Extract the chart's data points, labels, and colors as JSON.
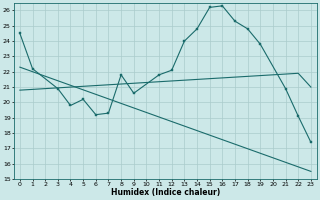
{
  "xlabel": "Humidex (Indice chaleur)",
  "background_color": "#cce8e8",
  "grid_color": "#aacccc",
  "line_color": "#1a6b6b",
  "xlim": [
    -0.5,
    23.5
  ],
  "ylim": [
    15,
    26.5
  ],
  "yticks": [
    15,
    16,
    17,
    18,
    19,
    20,
    21,
    22,
    23,
    24,
    25,
    26
  ],
  "xticks": [
    0,
    1,
    2,
    3,
    4,
    5,
    6,
    7,
    8,
    9,
    10,
    11,
    12,
    13,
    14,
    15,
    16,
    17,
    18,
    19,
    20,
    21,
    22,
    23
  ],
  "line1_x": [
    0,
    1,
    3,
    4,
    5,
    6,
    7,
    8,
    9,
    11,
    12,
    13,
    14,
    15,
    16,
    17,
    18,
    19,
    21,
    22,
    23
  ],
  "line1_y": [
    24.5,
    22.2,
    20.9,
    19.8,
    20.2,
    19.2,
    19.3,
    21.8,
    20.6,
    21.8,
    22.1,
    24.0,
    24.8,
    26.2,
    26.3,
    25.3,
    24.8,
    23.8,
    20.9,
    19.1,
    17.4
  ],
  "line2_x": [
    0,
    1,
    2,
    3,
    4,
    5,
    6,
    7,
    8,
    9,
    10,
    11,
    12,
    13,
    14,
    15,
    16,
    17,
    18,
    19,
    20,
    21,
    22,
    23
  ],
  "line2_y": [
    20.8,
    20.85,
    20.9,
    20.95,
    21.0,
    21.05,
    21.1,
    21.15,
    21.2,
    21.25,
    21.3,
    21.35,
    21.4,
    21.45,
    21.5,
    21.55,
    21.6,
    21.65,
    21.7,
    21.75,
    21.8,
    21.85,
    21.9,
    21.0
  ],
  "line3_x": [
    0,
    23
  ],
  "line3_y": [
    22.3,
    15.5
  ]
}
